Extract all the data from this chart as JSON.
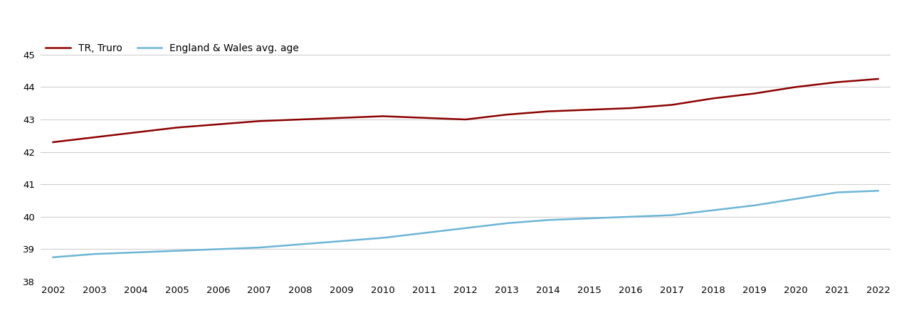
{
  "years": [
    2002,
    2003,
    2004,
    2005,
    2006,
    2007,
    2008,
    2009,
    2010,
    2011,
    2012,
    2013,
    2014,
    2015,
    2016,
    2017,
    2018,
    2019,
    2020,
    2021,
    2022
  ],
  "truro": [
    42.3,
    42.45,
    42.6,
    42.75,
    42.85,
    42.95,
    43.0,
    43.05,
    43.1,
    43.05,
    43.0,
    43.15,
    43.25,
    43.3,
    43.35,
    43.45,
    43.65,
    43.8,
    44.0,
    44.15,
    44.25
  ],
  "eng_wales": [
    38.75,
    38.85,
    38.9,
    38.95,
    39.0,
    39.05,
    39.15,
    39.25,
    39.35,
    39.5,
    39.65,
    39.8,
    39.9,
    39.95,
    40.0,
    40.05,
    40.2,
    40.35,
    40.55,
    40.75,
    40.8
  ],
  "truro_color": "#8B0000",
  "eng_wales_color": "#6BB5D6",
  "truro_label": "TR, Truro",
  "eng_wales_label": "England & Wales avg. age",
  "ylim": [
    38,
    45.5
  ],
  "yticks": [
    38,
    39,
    40,
    41,
    42,
    43,
    44,
    45
  ],
  "grid_color": "#D0D0D0",
  "bg_color": "#FFFFFF",
  "line_width": 1.8,
  "legend_fontsize": 10,
  "tick_fontsize": 9.5
}
